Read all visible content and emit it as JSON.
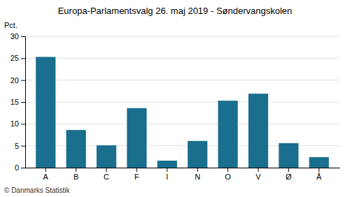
{
  "chart_data": {
    "type": "bar",
    "title": "Europa-Parlamentsvalg 26. maj 2019 - Søndervangskolen",
    "ylabel": "Pct.",
    "annotations": [
      "© Danmarks Statistik"
    ],
    "categories": [
      "A",
      "B",
      "C",
      "F",
      "I",
      "N",
      "O",
      "V",
      "Ø",
      "Å"
    ],
    "values": [
      25.3,
      8.6,
      5.1,
      13.6,
      1.6,
      6.1,
      15.3,
      16.9,
      5.6,
      2.4
    ],
    "color": "#1a6e8e",
    "ylim": [
      0,
      30
    ],
    "yticks": [
      0,
      5,
      10,
      15,
      20,
      25,
      30
    ],
    "grid": true
  }
}
